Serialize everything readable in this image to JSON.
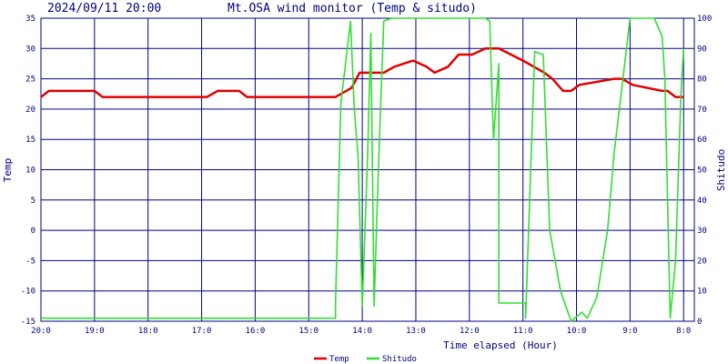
{
  "header": {
    "timestamp": "2024/09/11 20:00",
    "title": "Mt.OSA wind monitor (Temp & situdo)"
  },
  "chart_data": {
    "type": "line",
    "title": "Mt.OSA wind monitor (Temp & situdo)",
    "xlabel": "Time elapsed (Hour)",
    "ylabel_left": "Temp",
    "ylabel_right": "Shitudo",
    "x_ticks": [
      "20:0",
      "19:0",
      "18:0",
      "17:0",
      "16:0",
      "15:0",
      "14:0",
      "13:0",
      "12:0",
      "11:0",
      "10:0",
      "9:0",
      "8:0"
    ],
    "x_unit": "hours elapsed",
    "xlim": [
      0,
      12.2
    ],
    "y_left_ticks": [
      "35",
      "30",
      "25",
      "20",
      "15",
      "10",
      "5",
      "0",
      "-5",
      "-10",
      "-15"
    ],
    "ylim_left": [
      -15,
      35
    ],
    "y_right_ticks": [
      "100",
      "90",
      "80",
      "70",
      "60",
      "50",
      "40",
      "30",
      "20",
      "10",
      "0"
    ],
    "ylim_right": [
      0,
      100
    ],
    "grid": true,
    "legend_position": "bottom-center",
    "colors": {
      "background": "#ffffff",
      "grid": "#000080",
      "text": "#000080",
      "temp": "#e00000",
      "shitudo": "#33dd33"
    },
    "series": [
      {
        "name": "Temp",
        "color": "#e00000",
        "axis": "left",
        "x": [
          0,
          0.15,
          1.0,
          1.15,
          3.1,
          3.3,
          3.7,
          3.85,
          5.5,
          5.8,
          5.95,
          6.4,
          6.6,
          6.95,
          7.2,
          7.35,
          7.6,
          7.8,
          8.05,
          8.3,
          8.55,
          9.0,
          9.4,
          9.55,
          9.75,
          9.9,
          10.05,
          10.7,
          10.85,
          11.05,
          11.6,
          11.7,
          11.85,
          12.0
        ],
        "y": [
          22,
          23,
          23,
          22,
          22,
          23,
          23,
          22,
          22,
          23.5,
          26,
          26,
          27,
          28,
          27,
          26,
          27,
          29,
          29,
          30,
          30,
          28,
          26,
          25,
          23,
          23,
          24,
          25,
          25,
          24,
          23,
          23,
          22,
          22
        ]
      },
      {
        "name": "Shitudo",
        "color": "#33dd33",
        "axis": "right",
        "x": [
          0,
          5.5,
          5.5,
          5.6,
          5.78,
          5.85,
          5.92,
          6.0,
          6.1,
          6.16,
          6.22,
          6.3,
          6.4,
          6.55,
          8.3,
          8.38,
          8.45,
          8.55,
          8.55,
          9.05,
          9.05,
          9.22,
          9.38,
          9.5,
          9.7,
          9.9,
          10.1,
          10.2,
          10.38,
          10.58,
          10.7,
          11.0,
          11.1,
          11.45,
          11.6,
          11.65,
          11.75,
          11.85,
          11.95,
          12.0
        ],
        "y": [
          1,
          1,
          6,
          72,
          99,
          70,
          55,
          5,
          55,
          95,
          5,
          50,
          99,
          100,
          100,
          99,
          60,
          85,
          6,
          6,
          1,
          89,
          88,
          30,
          10,
          0,
          3,
          1,
          8,
          30,
          55,
          100,
          100,
          100,
          94,
          80,
          1,
          20,
          75,
          90
        ]
      }
    ]
  }
}
